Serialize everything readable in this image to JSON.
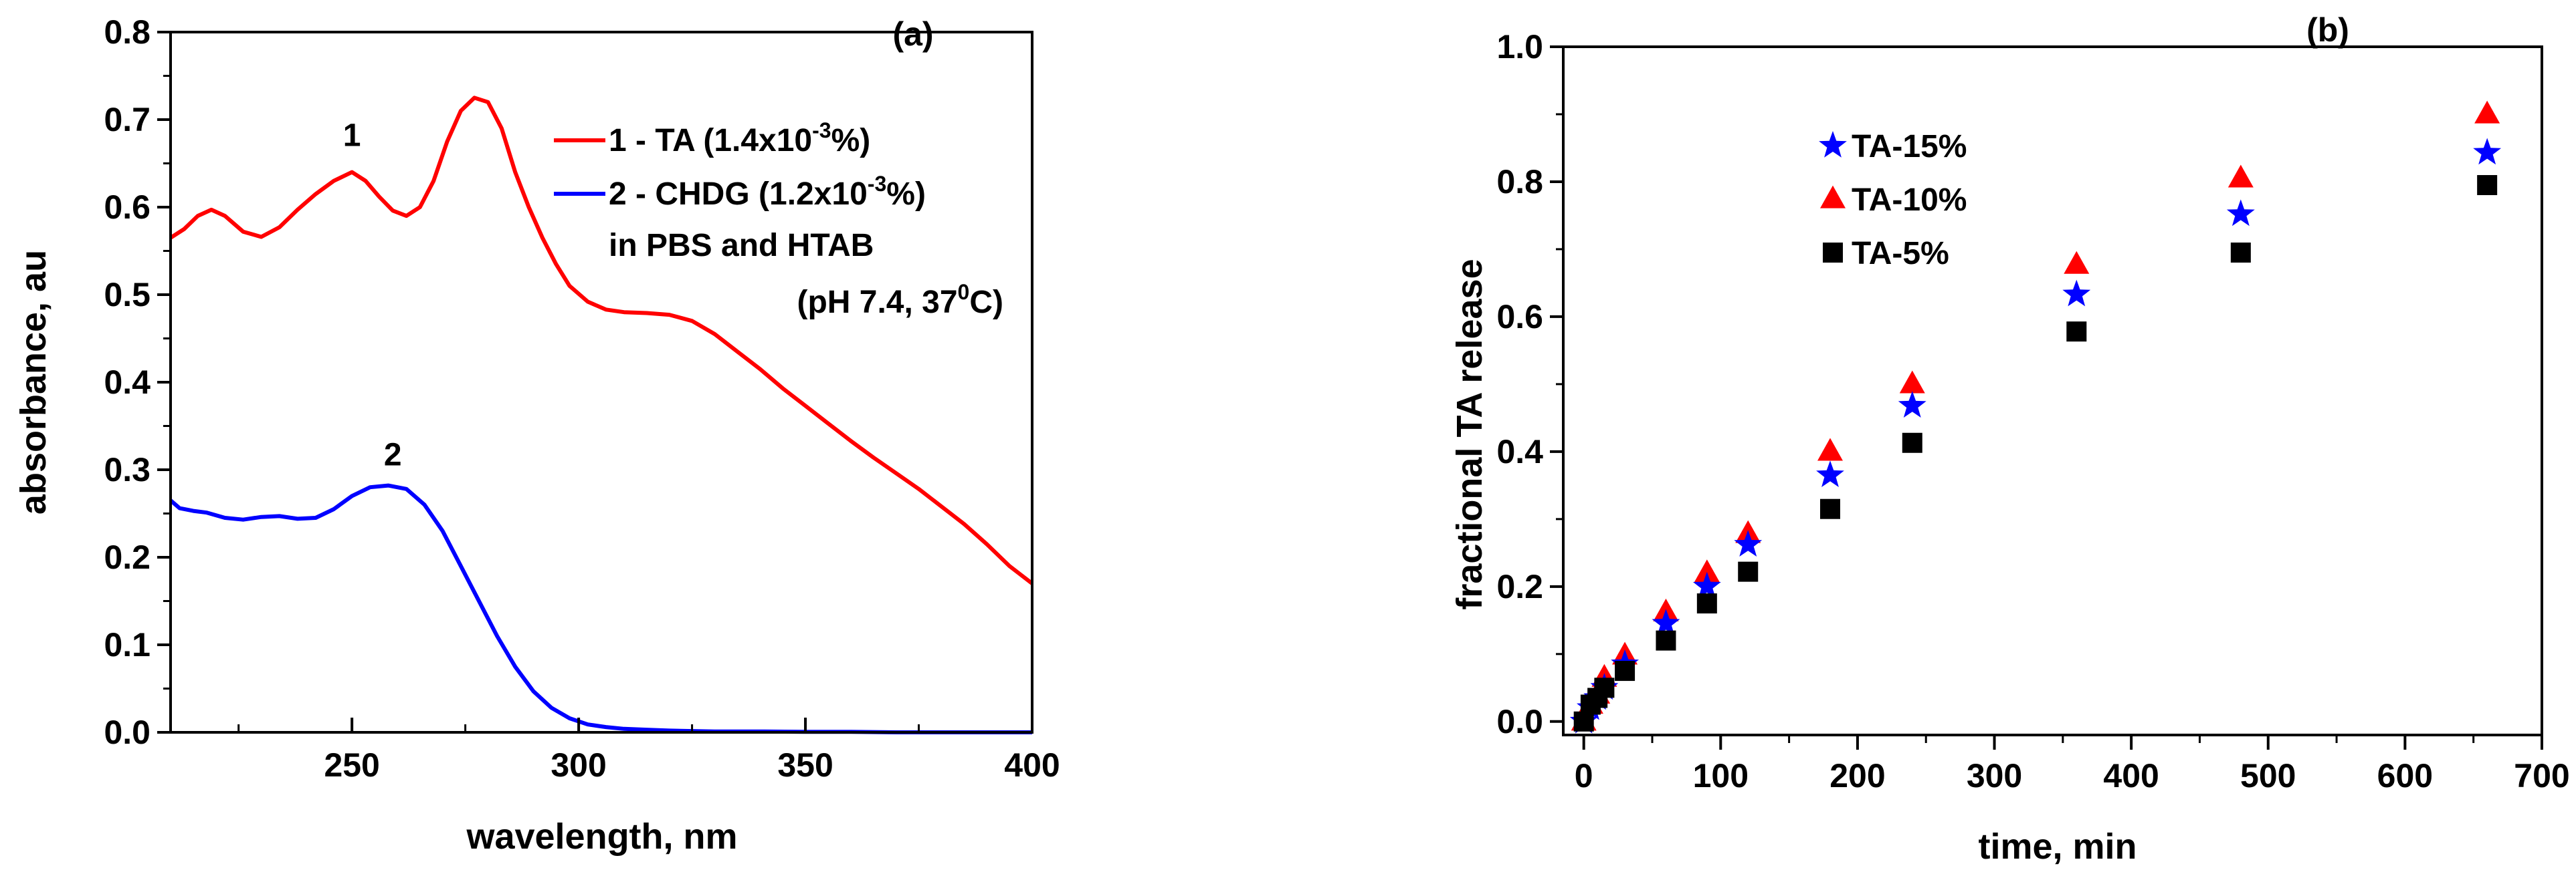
{
  "chart_data": [
    {
      "panel": "(a)",
      "type": "line",
      "xlabel": "wavelength, nm",
      "ylabel": "absorbance, au",
      "xlim": [
        210,
        400
      ],
      "ylim": [
        0,
        0.8
      ],
      "xticks": [
        250,
        300,
        350,
        400
      ],
      "yticks": [
        0.0,
        0.1,
        0.2,
        0.3,
        0.4,
        0.5,
        0.6,
        0.7,
        0.8
      ],
      "ytick_labels": [
        "0.0",
        "0.1",
        "0.2",
        "0.3",
        "0.4",
        "0.5",
        "0.6",
        "0.7",
        "0.8"
      ],
      "legend": {
        "placement": "top-right",
        "entries": [
          {
            "main": "1 - TA (1.4x10",
            "sup": "-3",
            "tail": "%)"
          },
          {
            "main": "2 - CHDG (1.2x10",
            "sup": "-3",
            "tail": "%)"
          }
        ],
        "note1": "in PBS and HTAB",
        "note2_main": "(pH 7.4, 37",
        "note2_sup": "0",
        "note2_tail": "C)"
      },
      "annotations": [
        {
          "text": "1",
          "x": 250,
          "y": 0.67
        },
        {
          "text": "2",
          "x": 259,
          "y": 0.305
        }
      ],
      "series": [
        {
          "name": "1 - TA (1.4x10-3%)",
          "color": "#ff0000",
          "x": [
            210,
            213,
            216,
            219,
            222,
            226,
            230,
            234,
            238,
            242,
            246,
            250,
            253,
            256,
            259,
            262,
            265,
            268,
            271,
            274,
            277,
            280,
            283,
            286,
            289,
            292,
            295,
            298,
            302,
            306,
            310,
            315,
            320,
            325,
            330,
            335,
            340,
            345,
            350,
            355,
            360,
            365,
            370,
            375,
            380,
            385,
            390,
            395,
            400
          ],
          "y": [
            0.565,
            0.575,
            0.59,
            0.597,
            0.59,
            0.572,
            0.566,
            0.577,
            0.597,
            0.615,
            0.63,
            0.64,
            0.63,
            0.612,
            0.596,
            0.59,
            0.6,
            0.63,
            0.675,
            0.71,
            0.725,
            0.72,
            0.69,
            0.64,
            0.6,
            0.565,
            0.535,
            0.51,
            0.492,
            0.483,
            0.48,
            0.479,
            0.477,
            0.47,
            0.455,
            0.435,
            0.415,
            0.393,
            0.373,
            0.353,
            0.333,
            0.314,
            0.296,
            0.278,
            0.258,
            0.238,
            0.215,
            0.19,
            0.17
          ]
        },
        {
          "name": "2 - CHDG (1.2x10-3%)",
          "color": "#0000ff",
          "x": [
            210,
            212,
            215,
            218,
            222,
            226,
            230,
            234,
            238,
            242,
            246,
            250,
            254,
            258,
            262,
            266,
            270,
            274,
            278,
            282,
            286,
            290,
            294,
            298,
            302,
            306,
            310,
            315,
            320,
            330,
            340,
            350,
            360,
            370,
            380,
            390,
            400
          ],
          "y": [
            0.265,
            0.256,
            0.253,
            0.251,
            0.245,
            0.243,
            0.246,
            0.247,
            0.244,
            0.245,
            0.255,
            0.27,
            0.28,
            0.282,
            0.278,
            0.26,
            0.23,
            0.19,
            0.15,
            0.11,
            0.075,
            0.047,
            0.028,
            0.016,
            0.009,
            0.006,
            0.004,
            0.003,
            0.002,
            0.001,
            0.001,
            0.0005,
            0.0005,
            0.0,
            0.0,
            0.0,
            0.0
          ]
        }
      ]
    },
    {
      "panel": "(b)",
      "type": "scatter",
      "xlabel": "time, min",
      "ylabel": "fractional TA release",
      "xlim": [
        -15,
        700
      ],
      "ylim": [
        -0.02,
        1.0
      ],
      "xticks": [
        0,
        100,
        200,
        300,
        400,
        500,
        600,
        700
      ],
      "yticks": [
        0.0,
        0.2,
        0.4,
        0.6,
        0.8,
        1.0
      ],
      "ytick_labels": [
        "0.0",
        "0.2",
        "0.4",
        "0.6",
        "0.8",
        "1.0"
      ],
      "legend": {
        "placement": "top-left",
        "entries": [
          "TA-15%",
          "TA-10%",
          "TA-5%"
        ]
      },
      "series": [
        {
          "name": "TA-15%",
          "marker": "star",
          "color": "#0000ff",
          "x": [
            0,
            5,
            10,
            15,
            30,
            60,
            90,
            120,
            180,
            240,
            360,
            480,
            660
          ],
          "y": [
            0.0,
            0.02,
            0.035,
            0.05,
            0.085,
            0.145,
            0.2,
            0.262,
            0.365,
            0.468,
            0.633,
            0.752,
            0.843
          ]
        },
        {
          "name": "TA-10%",
          "marker": "triangle",
          "color": "#ff0000",
          "x": [
            0,
            5,
            10,
            15,
            30,
            60,
            90,
            120,
            180,
            240,
            360,
            480,
            660
          ],
          "y": [
            0.0,
            0.025,
            0.04,
            0.065,
            0.098,
            0.162,
            0.22,
            0.278,
            0.4,
            0.5,
            0.677,
            0.805,
            0.9
          ]
        },
        {
          "name": "TA-5%",
          "marker": "square",
          "color": "#000000",
          "x": [
            0,
            5,
            10,
            15,
            30,
            60,
            90,
            120,
            180,
            240,
            360,
            480,
            660
          ],
          "y": [
            0.0,
            0.025,
            0.035,
            0.05,
            0.075,
            0.12,
            0.175,
            0.222,
            0.315,
            0.413,
            0.578,
            0.695,
            0.795
          ]
        }
      ]
    }
  ]
}
